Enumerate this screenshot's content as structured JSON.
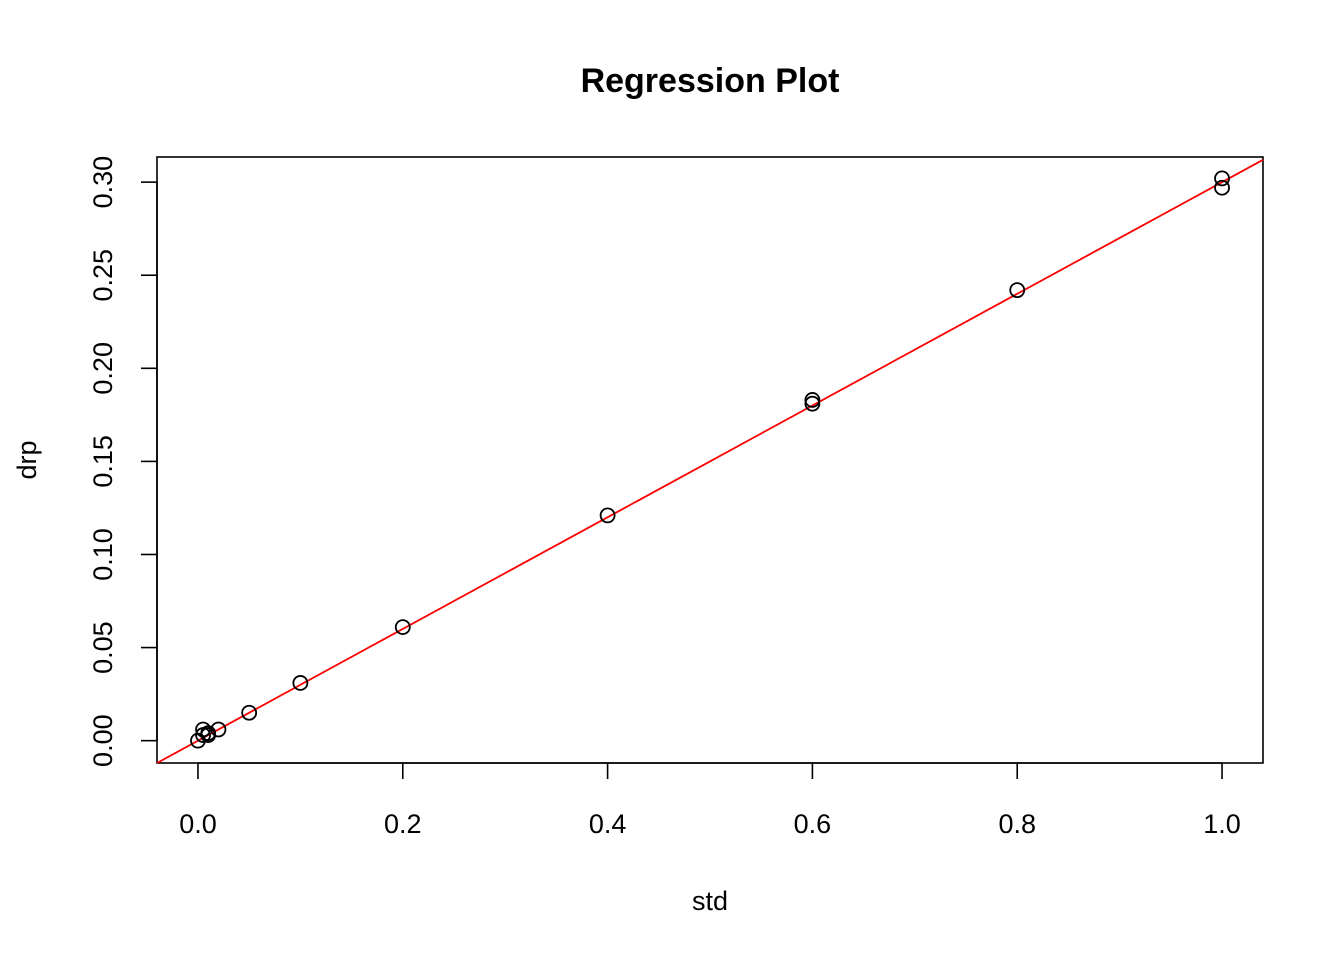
{
  "chart_data": {
    "type": "scatter",
    "title": "Regression Plot",
    "xlabel": "std",
    "ylabel": "drp",
    "xlim": [
      -0.04,
      1.04
    ],
    "ylim": [
      -0.012,
      0.3135
    ],
    "x_ticks": [
      0.0,
      0.2,
      0.4,
      0.6,
      0.8,
      1.0
    ],
    "x_tick_labels": [
      "0.0",
      "0.2",
      "0.4",
      "0.6",
      "0.8",
      "1.0"
    ],
    "y_ticks": [
      0.0,
      0.05,
      0.1,
      0.15,
      0.2,
      0.25,
      0.3
    ],
    "y_tick_labels": [
      "0.00",
      "0.05",
      "0.10",
      "0.15",
      "0.20",
      "0.25",
      "0.30"
    ],
    "grid": false,
    "legend": "none",
    "series": [
      {
        "x": [
          0,
          0.005,
          0.005,
          0.01,
          0.01,
          0.02,
          0.05,
          0.1,
          0.2,
          0.4,
          0.6,
          0.6,
          0.8,
          1.0,
          1.0
        ],
        "y": [
          0.0,
          0.006,
          0.003,
          0.003,
          0.004,
          0.006,
          0.015,
          0.031,
          0.061,
          0.121,
          0.183,
          0.181,
          0.242,
          0.302,
          0.297
        ],
        "marker": "open-circle",
        "color": "#000000"
      }
    ],
    "regression_line": {
      "intercept": 0.0,
      "slope": 0.3,
      "color": "#ff0000"
    }
  }
}
